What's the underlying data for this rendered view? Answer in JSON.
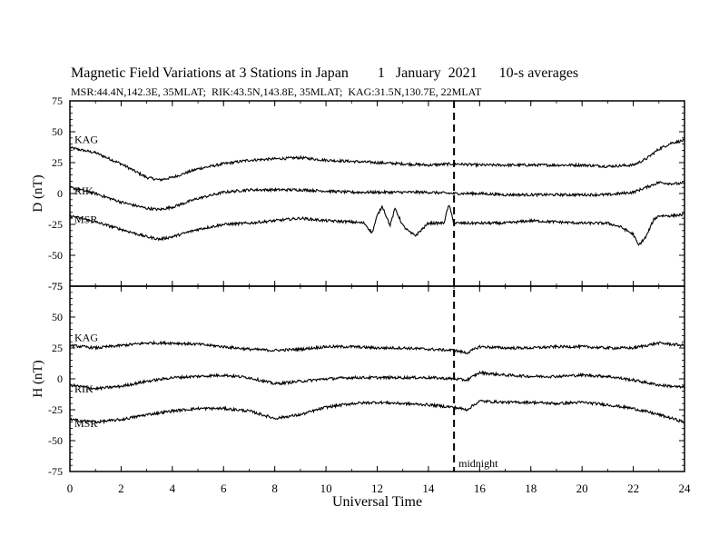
{
  "chart_data": {
    "type": "line",
    "title": "Magnetic Field Variations at 3 Stations in Japan        1   January  2021      10-s averages",
    "subtitle": "MSR:44.4N,142.3E, 35MLAT;  RIK:43.5N,143.8E, 35MLAT;  KAG:31.5N,130.7E, 22MLAT",
    "xlabel": "Universal Time",
    "xlim": [
      0,
      24
    ],
    "x_ticks": [
      0,
      2,
      4,
      6,
      8,
      10,
      12,
      14,
      16,
      18,
      20,
      22,
      24
    ],
    "grid": false,
    "annotation": {
      "text": "midnight",
      "x": 15,
      "line": "dashed"
    },
    "panels": [
      {
        "ylabel": "D (nT)",
        "ylim": [
          -75,
          75
        ],
        "y_ticks": [
          75,
          50,
          25,
          0,
          -25,
          -50,
          -75
        ],
        "series": [
          {
            "name": "KAG",
            "x": [
              0,
              1,
              2,
              3,
              3.5,
              4,
              5,
              6,
              7,
              8,
              9,
              10,
              11,
              12,
              13,
              14,
              15,
              16,
              17,
              18,
              19,
              20,
              21,
              22,
              22.5,
              23,
              23.5,
              24
            ],
            "y": [
              37,
              33,
              24,
              13,
              11,
              13,
              20,
              24,
              27,
              28,
              29,
              27,
              26,
              25,
              24,
              23,
              24,
              23,
              23,
              23,
              23,
              23,
              22,
              23,
              28,
              36,
              41,
              43
            ]
          },
          {
            "name": "RIK",
            "x": [
              0,
              1,
              2,
              3,
              3.5,
              4,
              5,
              6,
              7,
              8,
              9,
              10,
              11,
              12,
              13,
              14,
              15,
              16,
              17,
              18,
              19,
              20,
              21,
              22,
              22.5,
              23,
              23.5,
              24
            ],
            "y": [
              5,
              0,
              -7,
              -12,
              -13,
              -11,
              -4,
              1,
              3,
              3,
              3,
              2,
              1,
              1,
              1,
              1,
              0,
              0,
              -1,
              -1,
              -1,
              -1,
              -1,
              1,
              5,
              9,
              8,
              8
            ]
          },
          {
            "name": "MSR",
            "x": [
              0,
              1,
              2,
              3,
              3.5,
              4,
              5,
              6,
              7,
              8,
              9,
              10,
              11,
              11.5,
              11.8,
              12,
              12.2,
              12.5,
              12.7,
              13,
              13.3,
              13.5,
              14,
              14.6,
              14.8,
              15,
              16,
              17,
              18,
              19,
              20,
              21,
              21.5,
              22,
              22.2,
              22.5,
              22.8,
              23,
              23.5,
              24
            ],
            "y": [
              -18,
              -23,
              -29,
              -35,
              -37,
              -35,
              -29,
              -25,
              -24,
              -22,
              -20,
              -22,
              -23,
              -24,
              -32,
              -18,
              -10,
              -26,
              -12,
              -26,
              -32,
              -34,
              -24,
              -24,
              -9,
              -24,
              -24,
              -24,
              -22,
              -23,
              -24,
              -24,
              -27,
              -33,
              -42,
              -35,
              -21,
              -18,
              -18,
              -17
            ]
          }
        ]
      },
      {
        "ylabel": "H (nT)",
        "ylim": [
          -75,
          75
        ],
        "y_ticks": [
          75,
          50,
          25,
          0,
          -25,
          -50,
          -75
        ],
        "series": [
          {
            "name": "KAG",
            "x": [
              0,
              1,
              2,
              3,
              4,
              5,
              6,
              7,
              8,
              9,
              10,
              11,
              12,
              13,
              14,
              15,
              15.5,
              16,
              17,
              18,
              19,
              20,
              21,
              22,
              23,
              24
            ],
            "y": [
              27,
              25,
              27,
              29,
              29,
              28,
              26,
              24,
              23,
              24,
              26,
              26,
              25,
              25,
              24,
              23,
              21,
              26,
              25,
              25,
              26,
              26,
              25,
              25,
              29,
              27
            ]
          },
          {
            "name": "RIK",
            "x": [
              0,
              1,
              2,
              3,
              4,
              5,
              6,
              7,
              8,
              9,
              10,
              11,
              12,
              13,
              14,
              15,
              15.5,
              16,
              17,
              18,
              19,
              20,
              21,
              22,
              23,
              24
            ],
            "y": [
              -5,
              -8,
              -6,
              -2,
              1,
              2,
              3,
              1,
              -4,
              -2,
              0,
              1,
              1,
              1,
              1,
              0,
              -1,
              5,
              3,
              2,
              2,
              3,
              2,
              -1,
              -5,
              -7
            ]
          },
          {
            "name": "MSR",
            "x": [
              0,
              1,
              2,
              3,
              4,
              5,
              6,
              7,
              8,
              9,
              10,
              11,
              12,
              13,
              14,
              15,
              15.5,
              16,
              17,
              18,
              19,
              20,
              21,
              22,
              23,
              24
            ],
            "y": [
              -33,
              -35,
              -33,
              -29,
              -26,
              -24,
              -24,
              -26,
              -32,
              -29,
              -23,
              -20,
              -19,
              -20,
              -21,
              -23,
              -25,
              -18,
              -19,
              -19,
              -20,
              -19,
              -21,
              -24,
              -29,
              -35
            ]
          }
        ]
      }
    ]
  }
}
